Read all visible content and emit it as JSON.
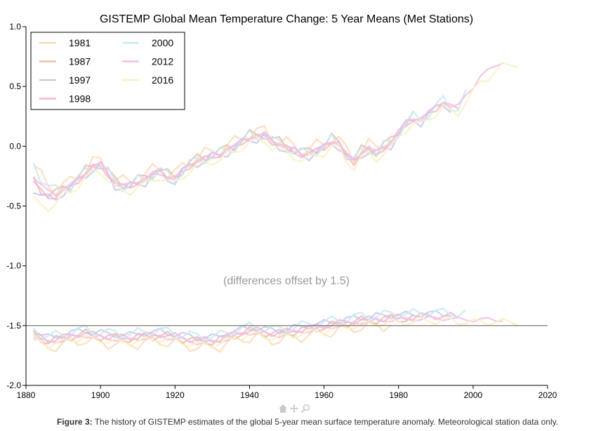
{
  "chart_data": {
    "type": "line",
    "title": "GISTEMP Global Mean Temperature Change: 5 Year Means (Met Stations)",
    "annotation": "(differences offset by 1.5)",
    "xlim": [
      1880,
      2020
    ],
    "ylim": [
      -2.0,
      1.0
    ],
    "xticks": [
      "1880",
      "1900",
      "1920",
      "1940",
      "1960",
      "1980",
      "2000",
      "2020"
    ],
    "yticks": [
      "-2.0",
      "-1.5",
      "-1.0",
      "-0.5",
      "0.0",
      "0.5",
      "1.0"
    ],
    "baseline_y": -1.5,
    "legend_position": "top-left",
    "main_x": [
      1882,
      1884,
      1886,
      1888,
      1890,
      1892,
      1894,
      1896,
      1898,
      1900,
      1902,
      1904,
      1906,
      1908,
      1910,
      1912,
      1914,
      1916,
      1918,
      1920,
      1922,
      1924,
      1926,
      1928,
      1930,
      1932,
      1934,
      1936,
      1938,
      1940,
      1942,
      1944,
      1946,
      1948,
      1950,
      1952,
      1954,
      1956,
      1958,
      1960,
      1962,
      1964,
      1966,
      1968,
      1970,
      1972,
      1974,
      1976,
      1978,
      1980,
      1982,
      1984,
      1986,
      1988,
      1990,
      1992,
      1994,
      1996,
      1998,
      2000,
      2002,
      2004,
      2006,
      2008,
      2010,
      2012
    ],
    "main_reference": [
      -0.25,
      -0.33,
      -0.38,
      -0.4,
      -0.36,
      -0.33,
      -0.27,
      -0.22,
      -0.17,
      -0.15,
      -0.22,
      -0.31,
      -0.33,
      -0.32,
      -0.29,
      -0.28,
      -0.23,
      -0.2,
      -0.25,
      -0.27,
      -0.2,
      -0.15,
      -0.12,
      -0.1,
      -0.07,
      -0.06,
      -0.03,
      0.0,
      0.05,
      0.08,
      0.08,
      0.1,
      0.05,
      0.02,
      -0.01,
      -0.03,
      -0.06,
      -0.06,
      -0.03,
      0.0,
      0.05,
      0.02,
      -0.07,
      -0.12,
      -0.05,
      -0.02,
      -0.05,
      0.0,
      0.03,
      0.12,
      0.2,
      0.24,
      0.22,
      0.28,
      0.33,
      0.38,
      0.33,
      0.33,
      0.43,
      0.5,
      0.58,
      0.63,
      0.68,
      0.71,
      0.73,
      0.75
    ],
    "diff_x": [
      1882,
      1884,
      1886,
      1888,
      1890,
      1892,
      1894,
      1896,
      1898,
      1900,
      1902,
      1904,
      1906,
      1908,
      1910,
      1912,
      1914,
      1916,
      1918,
      1920,
      1922,
      1924,
      1926,
      1928,
      1930,
      1932,
      1934,
      1936,
      1938,
      1940,
      1942,
      1944,
      1946,
      1948,
      1950,
      1952,
      1954,
      1956,
      1958,
      1960,
      1962,
      1964,
      1966,
      1968,
      1970,
      1972,
      1974,
      1976,
      1978,
      1980,
      1982,
      1984,
      1986,
      1988,
      1990,
      1992,
      1994,
      1996,
      1998,
      2000,
      2002,
      2004,
      2006,
      2008,
      2010,
      2012
    ],
    "diff_reference": [
      -1.58,
      -1.62,
      -1.64,
      -1.63,
      -1.62,
      -1.6,
      -1.59,
      -1.58,
      -1.6,
      -1.6,
      -1.61,
      -1.61,
      -1.62,
      -1.62,
      -1.61,
      -1.6,
      -1.6,
      -1.59,
      -1.6,
      -1.61,
      -1.62,
      -1.63,
      -1.64,
      -1.64,
      -1.64,
      -1.63,
      -1.61,
      -1.59,
      -1.57,
      -1.56,
      -1.56,
      -1.57,
      -1.58,
      -1.58,
      -1.57,
      -1.56,
      -1.55,
      -1.54,
      -1.53,
      -1.52,
      -1.51,
      -1.5,
      -1.49,
      -1.48,
      -1.47,
      -1.47,
      -1.46,
      -1.46,
      -1.45,
      -1.45,
      -1.45,
      -1.45,
      -1.44,
      -1.44,
      -1.44,
      -1.44,
      -1.44,
      -1.45,
      -1.45,
      -1.45,
      -1.45,
      -1.45,
      -1.45,
      -1.45,
      -1.45,
      -1.45
    ],
    "series": [
      {
        "name": "1981",
        "color": "#fdd9b5",
        "end": 1978,
        "main_offset": 0.03,
        "main_amp": 0.06,
        "diff_offset": -0.04,
        "diff_amp": 0.05,
        "start_shift": 0.06
      },
      {
        "name": "1987",
        "color": "#e8c0b0",
        "end": 1985,
        "main_offset": 0.01,
        "main_amp": 0.05,
        "diff_offset": 0.01,
        "diff_amp": 0.04,
        "start_shift": -0.05
      },
      {
        "name": "1997",
        "color": "#c8c6f4",
        "end": 1995,
        "main_offset": -0.02,
        "main_amp": 0.04,
        "diff_offset": 0.04,
        "diff_amp": 0.03,
        "start_shift": -0.08
      },
      {
        "name": "1998",
        "color": "#f4b8c8",
        "end": 1996,
        "main_offset": -0.01,
        "main_amp": 0.03,
        "diff_offset": 0.02,
        "diff_amp": 0.03,
        "start_shift": -0.05
      },
      {
        "name": "2000",
        "color": "#c6eaf0",
        "end": 1998,
        "main_offset": 0.0,
        "main_amp": 0.05,
        "diff_offset": 0.05,
        "diff_amp": 0.04,
        "start_shift": 0.1
      },
      {
        "name": "2012",
        "color": "#f2bde6",
        "end": 2009,
        "main_offset": 0.0,
        "main_amp": 0.02,
        "diff_offset": 0.0,
        "diff_amp": 0.02,
        "start_shift": 0.0
      },
      {
        "name": "2016",
        "color": "#faf0c2",
        "end": 2013,
        "main_offset": -0.05,
        "main_amp": 0.04,
        "diff_offset": -0.02,
        "diff_amp": 0.03,
        "start_shift": -0.15
      }
    ]
  },
  "caption": {
    "label": "Figure 3:",
    "text": " The history of GISTEMP estimates of the global 5-year mean surface temperature anomaly. Meteorological station data only."
  },
  "toolbar": {
    "home_icon": "home-icon",
    "pan_icon": "pan-icon",
    "zoom_icon": "zoom-icon"
  }
}
